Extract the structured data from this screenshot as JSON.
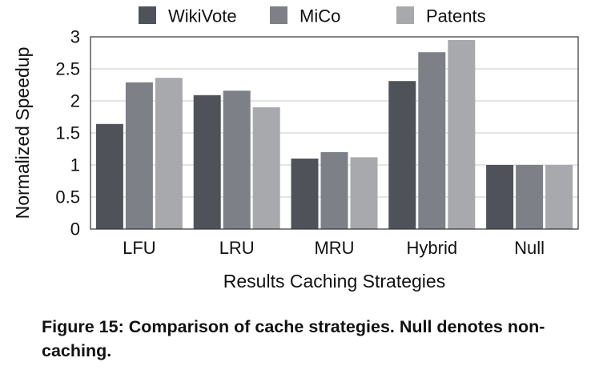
{
  "chart_data": {
    "type": "bar",
    "categories": [
      "LFU",
      "LRU",
      "MRU",
      "Hybrid",
      "Null"
    ],
    "series": [
      {
        "name": "WikiVote",
        "color": "#4f5359",
        "values": [
          1.64,
          2.09,
          1.1,
          2.31,
          1.0
        ]
      },
      {
        "name": "MiCo",
        "color": "#7d8087",
        "values": [
          2.29,
          2.16,
          1.2,
          2.76,
          1.0
        ]
      },
      {
        "name": "Patents",
        "color": "#a7a9ac",
        "values": [
          2.36,
          1.9,
          1.12,
          2.95,
          1.0
        ]
      }
    ],
    "xlabel": "Results Caching Strategies",
    "ylabel": "Normalized Speedup",
    "ylim": [
      0,
      3
    ],
    "yticks": [
      "0",
      "0.5",
      "1",
      "1.5",
      "2",
      "2.5",
      "3"
    ],
    "grid": true,
    "legend_position": "top"
  },
  "caption": "Figure 15: Comparison of cache strategies. Null denotes non-caching."
}
